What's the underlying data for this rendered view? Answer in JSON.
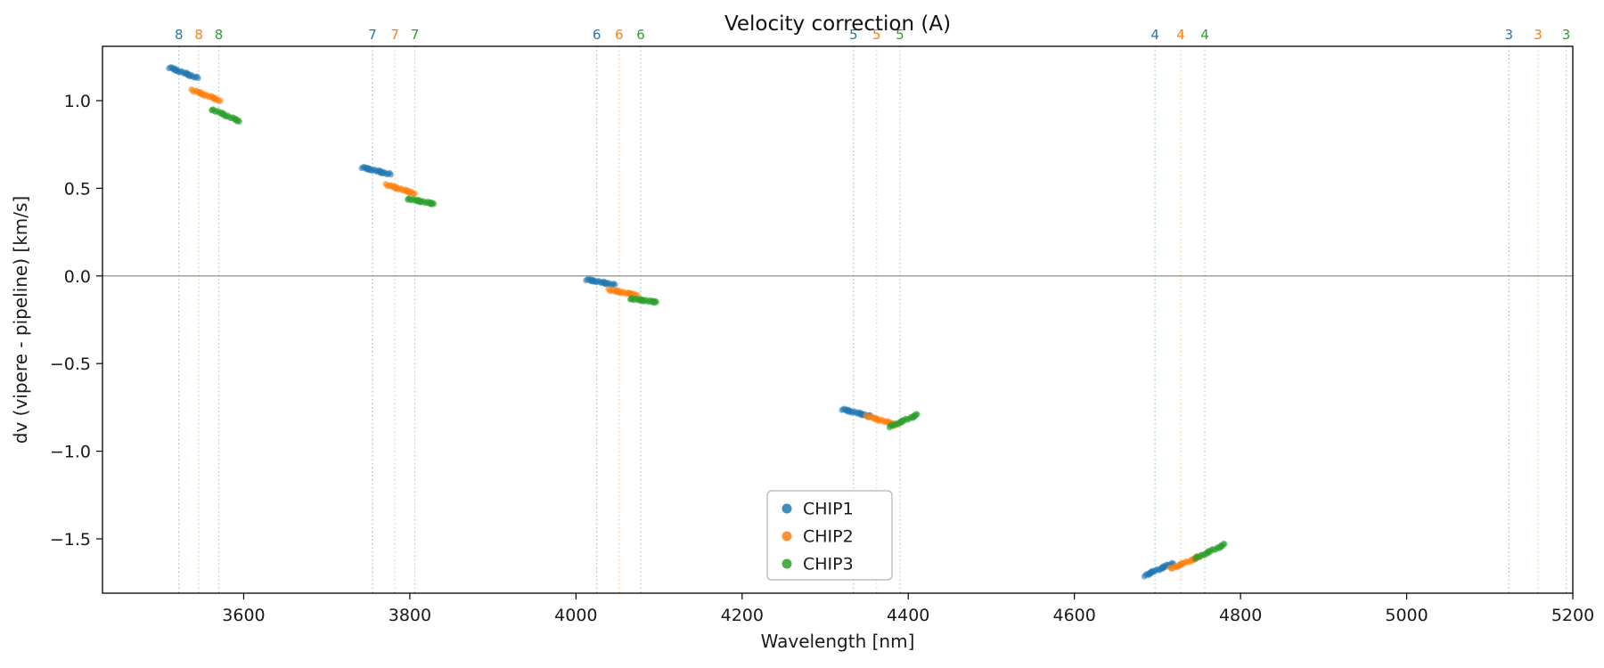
{
  "chart_data": {
    "type": "scatter",
    "title": "Velocity correction (A)",
    "xlabel": "Wavelength [nm]",
    "ylabel": "dv (vipere - pipeline) [km/s]",
    "xlim": [
      3430,
      5200
    ],
    "ylim": [
      -1.81,
      1.31
    ],
    "xticks": [
      3600,
      3800,
      4000,
      4200,
      4400,
      4600,
      4800,
      5000,
      5200
    ],
    "yticks": [
      1.0,
      0.5,
      0.0,
      -0.5,
      -1.0,
      -1.5
    ],
    "ytick_labels": [
      "1.0",
      "0.5",
      "0.0",
      "−0.5",
      "−1.0",
      "−1.5"
    ],
    "zero_line": 0.0,
    "grid": false,
    "legend": {
      "position": "lower-center",
      "entries": [
        {
          "label": "CHIP1",
          "color": "#1f77b4"
        },
        {
          "label": "CHIP2",
          "color": "#ff7f0e"
        },
        {
          "label": "CHIP3",
          "color": "#2ca02c"
        }
      ]
    },
    "order_marks": [
      {
        "order": "8",
        "lines": [
          {
            "series": "CHIP1",
            "x": 3522
          },
          {
            "series": "CHIP2",
            "x": 3546
          },
          {
            "series": "CHIP3",
            "x": 3570
          }
        ]
      },
      {
        "order": "7",
        "lines": [
          {
            "series": "CHIP1",
            "x": 3755
          },
          {
            "series": "CHIP2",
            "x": 3782
          },
          {
            "series": "CHIP3",
            "x": 3806
          }
        ]
      },
      {
        "order": "6",
        "lines": [
          {
            "series": "CHIP1",
            "x": 4025
          },
          {
            "series": "CHIP2",
            "x": 4052
          },
          {
            "series": "CHIP3",
            "x": 4078
          }
        ]
      },
      {
        "order": "5",
        "lines": [
          {
            "series": "CHIP1",
            "x": 4334
          },
          {
            "series": "CHIP2",
            "x": 4362
          },
          {
            "series": "CHIP3",
            "x": 4390
          }
        ]
      },
      {
        "order": "4",
        "lines": [
          {
            "series": "CHIP1",
            "x": 4697
          },
          {
            "series": "CHIP2",
            "x": 4728
          },
          {
            "series": "CHIP3",
            "x": 4757
          }
        ]
      },
      {
        "order": "3",
        "lines": [
          {
            "series": "CHIP1",
            "x": 5123
          },
          {
            "series": "CHIP2",
            "x": 5158
          },
          {
            "series": "CHIP3",
            "x": 5192
          }
        ]
      }
    ],
    "series": [
      {
        "name": "CHIP1",
        "color": "#1f77b4",
        "segments": [
          {
            "order": "8",
            "x": [
              3510,
              3544
            ],
            "y": [
              1.19,
              1.13
            ]
          },
          {
            "order": "7",
            "x": [
              3742,
              3776
            ],
            "y": [
              0.62,
              0.58
            ]
          },
          {
            "order": "6",
            "x": [
              4012,
              4046
            ],
            "y": [
              -0.02,
              -0.05
            ]
          },
          {
            "order": "5",
            "x": [
              4320,
              4354
            ],
            "y": [
              -0.76,
              -0.8
            ]
          },
          {
            "order": "4",
            "x": [
              4684,
              4718
            ],
            "y": [
              -1.71,
              -1.64
            ]
          }
        ]
      },
      {
        "name": "CHIP2",
        "color": "#ff7f0e",
        "segments": [
          {
            "order": "8",
            "x": [
              3538,
              3572
            ],
            "y": [
              1.06,
              1.0
            ]
          },
          {
            "order": "7",
            "x": [
              3772,
              3806
            ],
            "y": [
              0.52,
              0.47
            ]
          },
          {
            "order": "6",
            "x": [
              4040,
              4074
            ],
            "y": [
              -0.08,
              -0.11
            ]
          },
          {
            "order": "5",
            "x": [
              4350,
              4386
            ],
            "y": [
              -0.8,
              -0.85
            ]
          },
          {
            "order": "4",
            "x": [
              4716,
              4752
            ],
            "y": [
              -1.67,
              -1.6
            ]
          }
        ]
      },
      {
        "name": "CHIP3",
        "color": "#2ca02c",
        "segments": [
          {
            "order": "8",
            "x": [
              3562,
              3596
            ],
            "y": [
              0.95,
              0.88
            ]
          },
          {
            "order": "7",
            "x": [
              3798,
              3830
            ],
            "y": [
              0.44,
              0.41
            ]
          },
          {
            "order": "6",
            "x": [
              4066,
              4098
            ],
            "y": [
              -0.13,
              -0.15
            ]
          },
          {
            "order": "5",
            "x": [
              4378,
              4412
            ],
            "y": [
              -0.86,
              -0.79
            ]
          },
          {
            "order": "4",
            "x": [
              4746,
              4782
            ],
            "y": [
              -1.61,
              -1.53
            ]
          }
        ]
      }
    ]
  }
}
